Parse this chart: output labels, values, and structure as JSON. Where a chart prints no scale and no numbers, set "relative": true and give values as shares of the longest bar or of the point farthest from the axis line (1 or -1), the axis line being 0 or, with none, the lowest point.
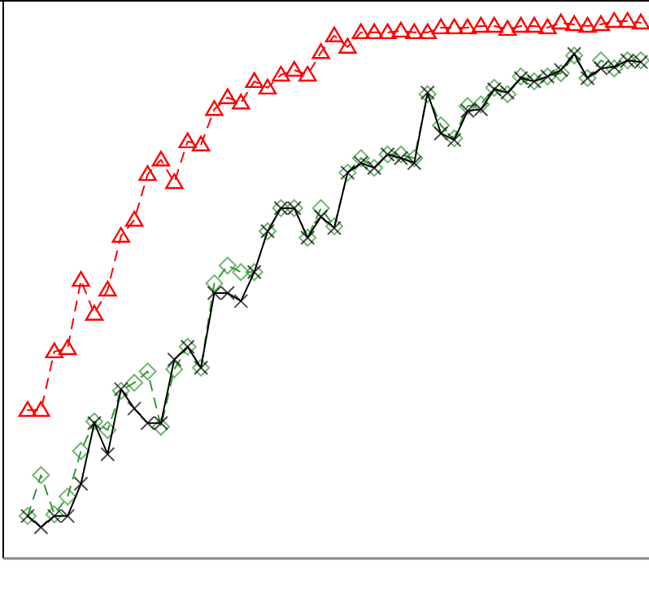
{
  "chart_data": {
    "type": "line",
    "relative": true,
    "categories": [
      null,
      null,
      null,
      null,
      null,
      null,
      null,
      null,
      null,
      null,
      null,
      null,
      null,
      null,
      null,
      null,
      null,
      null,
      null,
      null,
      null,
      null,
      null,
      null,
      null,
      null,
      null,
      null,
      null,
      null,
      null,
      null,
      null,
      null,
      null,
      null,
      null,
      null,
      null,
      null,
      null,
      null,
      null,
      null,
      null,
      null,
      null
    ],
    "series": [
      {
        "color": "#ff0000",
        "marker": "triangle",
        "line_style": "dashed",
        "values": [
          0.276,
          0.276,
          0.385,
          0.391,
          0.518,
          0.455,
          0.5,
          0.6,
          0.63,
          0.715,
          0.742,
          0.7,
          0.776,
          0.77,
          0.836,
          0.858,
          0.848,
          0.888,
          0.876,
          0.9,
          0.909,
          0.9,
          0.942,
          0.973,
          0.952,
          0.979,
          0.979,
          0.979,
          0.982,
          0.979,
          0.979,
          0.988,
          0.988,
          0.988,
          0.991,
          0.991,
          0.985,
          0.991,
          0.991,
          0.988,
          0.997,
          0.994,
          0.991,
          0.994,
          1,
          1,
          0.997
        ]
      },
      {
        "color": "#339933",
        "marker": "diamond",
        "line_style": "dashed",
        "values": [
          0.079,
          0.155,
          0.082,
          0.115,
          0.2,
          0.255,
          0.239,
          0.312,
          0.327,
          0.348,
          0.245,
          0.352,
          0.394,
          0.355,
          0.512,
          0.545,
          0.533,
          0.533,
          0.609,
          0.652,
          0.652,
          0.597,
          0.652,
          0.618,
          0.718,
          0.745,
          0.727,
          0.752,
          0.752,
          0.745,
          0.864,
          0.806,
          0.782,
          0.842,
          0.845,
          0.876,
          0.864,
          0.897,
          0.888,
          0.897,
          0.903,
          0.936,
          0.894,
          0.927,
          0.912,
          0.927,
          0.927
        ]
      },
      {
        "color": "#000000",
        "marker": "cross",
        "line_style": "solid",
        "values": [
          0.079,
          0.058,
          0.079,
          0.079,
          0.139,
          0.252,
          0.194,
          0.315,
          0.279,
          0.252,
          0.252,
          0.37,
          0.394,
          0.355,
          0.494,
          0.494,
          0.479,
          0.533,
          0.609,
          0.652,
          0.652,
          0.597,
          0.636,
          0.615,
          0.718,
          0.736,
          0.727,
          0.752,
          0.745,
          0.736,
          0.867,
          0.791,
          0.779,
          0.833,
          0.836,
          0.873,
          0.867,
          0.894,
          0.888,
          0.897,
          0.909,
          0.939,
          0.894,
          0.912,
          0.915,
          0.927,
          0.924
        ]
      }
    ]
  }
}
